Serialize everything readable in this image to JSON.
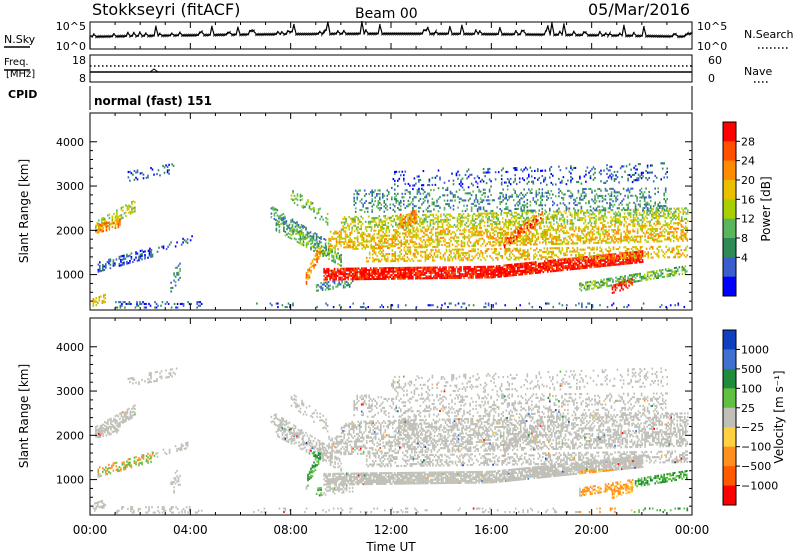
{
  "header": {
    "station": "Stokkseyri (fitACF)",
    "beam": "Beam 00",
    "date": "05/Mar/2016"
  },
  "side_labels": {
    "nsky": "N.Sky",
    "nsearch": "N.Search",
    "freq_line1": "Freq.",
    "freq_line2": "[MHz]",
    "nave": "Nave",
    "cpid": "CPID"
  },
  "mode_text": "normal (fast) 151",
  "chart_data": [
    {
      "type": "line",
      "panel": "noise",
      "left_ticks": [
        "10^5",
        "10^0"
      ],
      "right_ticks": [
        "10^5",
        "10^0"
      ],
      "series": [
        {
          "name": "N.Sky",
          "style": "solid"
        },
        {
          "name": "N.Search",
          "style": "dotted"
        }
      ]
    },
    {
      "type": "line",
      "panel": "frequency",
      "left_ticks": [
        "18",
        "8"
      ],
      "right_ticks": [
        "60",
        "0"
      ],
      "series": [
        {
          "name": "Freq.",
          "style": "solid",
          "approx_value_mhz": 9.5
        },
        {
          "name": "Nave",
          "style": "dotted",
          "approx_value": 48
        }
      ]
    },
    {
      "type": "heatmap",
      "panel": "power",
      "ylabel": "Slant Range [km]",
      "yticks": [
        1000,
        2000,
        3000,
        4000
      ],
      "ylim": [
        200,
        4650
      ],
      "xlim_hours": [
        0,
        24
      ],
      "colorbar": {
        "label": "Power [dB]",
        "ticks": [
          "28",
          "24",
          "20",
          "16",
          "12",
          "8",
          "4"
        ],
        "colors": [
          "#ff0000",
          "#ff5000",
          "#ff8c00",
          "#e8c000",
          "#a8d000",
          "#5bb55b",
          "#2e8b57",
          "#3a5fcd",
          "#0000ff"
        ]
      }
    },
    {
      "type": "heatmap",
      "panel": "velocity",
      "ylabel": "Slant Range [km]",
      "yticks": [
        1000,
        2000,
        3000,
        4000
      ],
      "ylim": [
        200,
        4650
      ],
      "xlim_hours": [
        0,
        24
      ],
      "xticks": [
        "00:00",
        "04:00",
        "08:00",
        "12:00",
        "16:00",
        "20:00",
        "00:00"
      ],
      "xlabel": "Time UT",
      "colorbar": {
        "label": "Velocity [m s⁻¹]",
        "ticks": [
          "1000",
          "500",
          "100",
          "25",
          "−25",
          "−100",
          "−500",
          "−1000"
        ],
        "colors": [
          "#1040c0",
          "#4070d0",
          "#1e8c3c",
          "#60c040",
          "#c0c0b8",
          "#ffd040",
          "#ff9020",
          "#ff5a00",
          "#ff0000"
        ]
      }
    }
  ]
}
